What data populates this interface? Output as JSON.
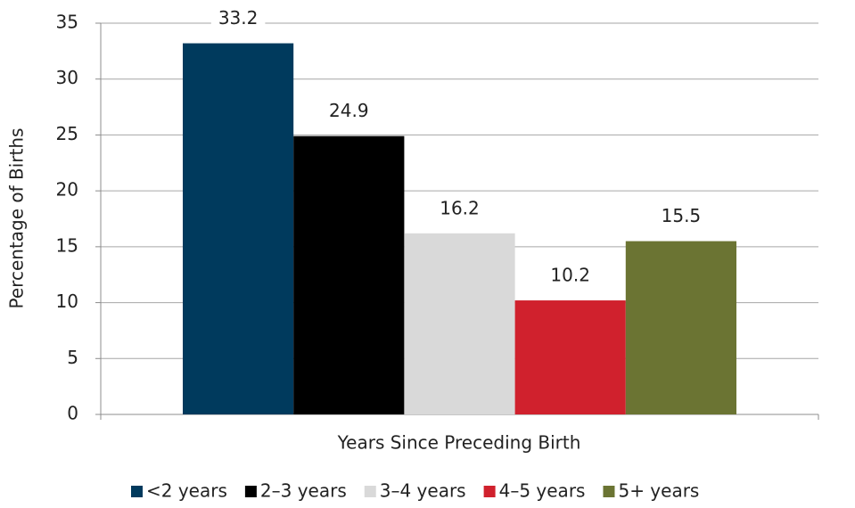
{
  "chart_data": {
    "type": "bar",
    "x_label": "Years Since Preceding Birth",
    "y_label": "Percentage of Births",
    "categories": [
      null
    ],
    "series": [
      {
        "name": "<2 years",
        "color": "#003a5d",
        "values": [
          33.2
        ]
      },
      {
        "name": "2–3 years",
        "color": "#000000",
        "values": [
          24.9
        ]
      },
      {
        "name": "3–4 years",
        "color": "#d9d9d9",
        "values": [
          16.2
        ]
      },
      {
        "name": "4–5 years",
        "color": "#d0212d",
        "values": [
          10.2
        ]
      },
      {
        "name": "5+ years",
        "color": "#6b7433",
        "values": [
          15.5
        ]
      }
    ],
    "ylim": [
      0,
      35
    ],
    "yticks": [
      0,
      5,
      10,
      15,
      20,
      25,
      30,
      35
    ],
    "grid": true,
    "legend": "bottom"
  }
}
